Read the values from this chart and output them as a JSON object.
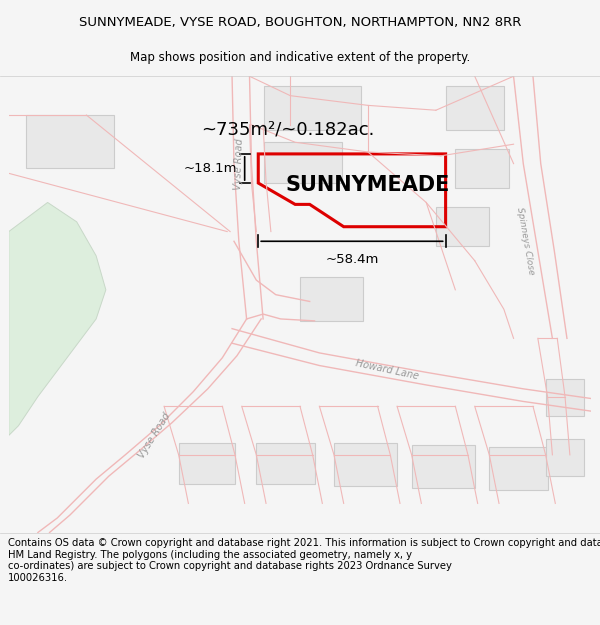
{
  "title_line1": "SUNNYMEADE, VYSE ROAD, BOUGHTON, NORTHAMPTON, NN2 8RR",
  "title_line2": "Map shows position and indicative extent of the property.",
  "property_label": "SUNNYMEADE",
  "area_label": "~735m²/~0.182ac.",
  "dim_width": "~58.4m",
  "dim_height": "~18.1m",
  "copyright_text": "Contains OS data © Crown copyright and database right 2021. This information is subject to Crown copyright and database rights 2023 and is reproduced with the permission of\nHM Land Registry. The polygons (including the associated geometry, namely x, y\nco-ordinates) are subject to Crown copyright and database rights 2023 Ordnance Survey\n100026316.",
  "bg_color": "#f5f5f5",
  "map_bg": "#ffffff",
  "road_line_color": "#f0b8b8",
  "property_outline": "#dd0000",
  "building_color": "#e8e8e8",
  "building_edge": "#cccccc",
  "green_color": "#ddeedd",
  "green_edge": "#c8d8c8",
  "road_label_color": "#999999",
  "title_fontsize": 9.5,
  "subtitle_fontsize": 8.5,
  "label_fontsize": 15,
  "area_fontsize": 13,
  "copyright_fontsize": 7.2
}
